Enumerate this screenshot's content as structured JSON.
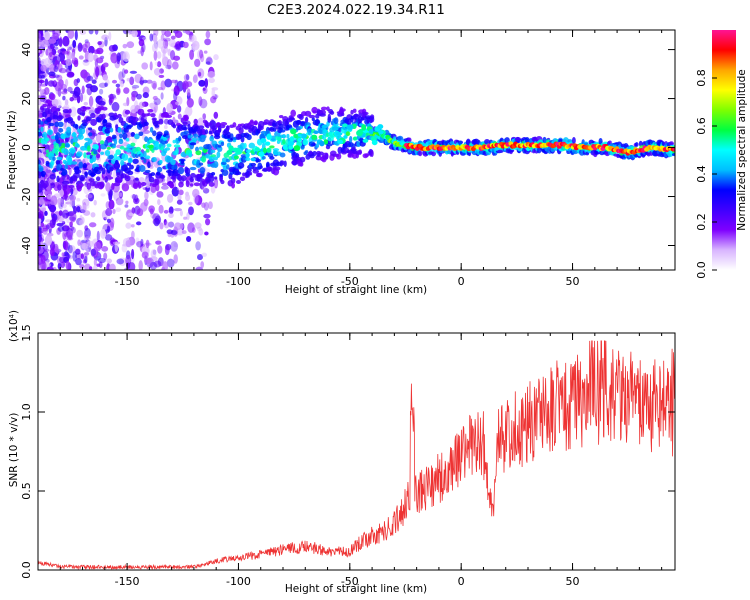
{
  "title": "C2E3.2024.022.19.34.R11",
  "chart_data": [
    {
      "type": "heatmap",
      "xlabel": "Height of straight line (km)",
      "ylabel": "Frequency (Hz)",
      "xlim": [
        -190,
        96
      ],
      "ylim": [
        -50,
        48
      ],
      "xticks": [
        -150,
        -100,
        -50,
        0,
        50
      ],
      "yticks": [
        -40,
        -20,
        0,
        20,
        40
      ],
      "colorbar": {
        "label": "Normalized spectral amplitude",
        "range": [
          0.0,
          1.0
        ],
        "ticks": [
          "0.0",
          "0.2",
          "0.4",
          "0.6",
          "0.8"
        ],
        "tick_values": [
          0.0,
          0.2,
          0.4,
          0.6,
          0.8
        ],
        "colormap": [
          "#ffffff",
          "#d8b4ff",
          "#7f00ff",
          "#3f00ff",
          "#0000ff",
          "#00bfff",
          "#00ffff",
          "#00ff40",
          "#7fff00",
          "#ffff00",
          "#ffa500",
          "#ff0000",
          "#ff1493"
        ]
      },
      "ridge": {
        "x": [
          -190,
          -150,
          -120,
          -100,
          -80,
          -60,
          -45,
          -35,
          -30,
          -20,
          0,
          10,
          20,
          30,
          45,
          55,
          65,
          75,
          85,
          96
        ],
        "freq": [
          0,
          0,
          -2,
          -3,
          2,
          6,
          6,
          5,
          2,
          0,
          0,
          0,
          1,
          1,
          1,
          0,
          0,
          -2,
          0,
          -1
        ]
      },
      "grid": false,
      "legend": "colorbar-right"
    },
    {
      "type": "line",
      "xlabel": "Height of straight line (km)",
      "ylabel": "SNR (10 * v/v)",
      "y_multiplier": "(x10⁴)",
      "xlim": [
        -190,
        96
      ],
      "ylim": [
        0,
        1.5
      ],
      "xticks": [
        -150,
        -100,
        -50,
        0,
        50
      ],
      "yticks": [
        0.0,
        0.5,
        1.0,
        1.5
      ],
      "ytick_labels": [
        "0.0",
        "0.5",
        "1.0",
        "1.5"
      ],
      "series": [
        {
          "color": "#ee3333",
          "x": [
            -190,
            -180,
            -160,
            -140,
            -120,
            -110,
            -100,
            -90,
            -80,
            -70,
            -60,
            -50,
            -45,
            -40,
            -35,
            -30,
            -25,
            -22,
            -20,
            -15,
            -10,
            -5,
            0,
            5,
            10,
            14,
            15,
            16,
            20,
            25,
            30,
            40,
            50,
            60,
            70,
            80,
            90,
            96
          ],
          "y": [
            0.05,
            0.02,
            0.02,
            0.02,
            0.02,
            0.06,
            0.08,
            0.1,
            0.13,
            0.16,
            0.12,
            0.12,
            0.18,
            0.22,
            0.25,
            0.3,
            0.42,
            0.5,
            0.5,
            0.55,
            0.6,
            0.65,
            0.72,
            0.8,
            0.82,
            0.4,
            0.5,
            0.85,
            0.87,
            0.92,
            0.95,
            1.05,
            1.1,
            1.15,
            1.12,
            1.1,
            1.05,
            1.02
          ]
        }
      ],
      "grid": false
    }
  ]
}
